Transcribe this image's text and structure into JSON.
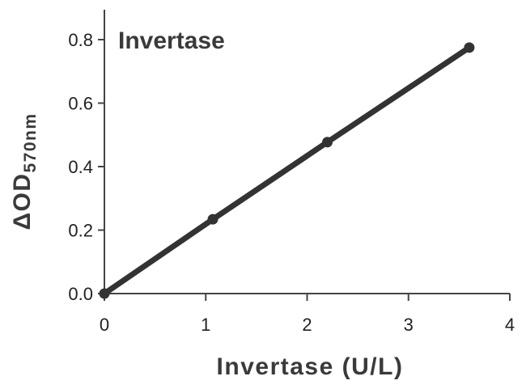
{
  "chart_data": {
    "type": "line",
    "title": "Invertase",
    "xlabel": "Invertase (U/L)",
    "ylabel_main": "ΔOD",
    "ylabel_sub": "570nm",
    "xlim": [
      0,
      4
    ],
    "ylim": [
      0,
      0.9
    ],
    "x_ticks": [
      0,
      1,
      2,
      3,
      4
    ],
    "x_tick_labels": [
      "0",
      "1",
      "2",
      "3",
      "4"
    ],
    "y_ticks": [
      0,
      0.2,
      0.4,
      0.6,
      0.8
    ],
    "y_tick_labels": [
      "0.0",
      "0.2",
      "0.4",
      "0.6",
      "0.8"
    ],
    "grid": false,
    "series": [
      {
        "x": [
          0,
          1.07,
          2.2,
          3.6
        ],
        "values": [
          0,
          0.234,
          0.477,
          0.775
        ],
        "color": "#333333"
      }
    ]
  }
}
